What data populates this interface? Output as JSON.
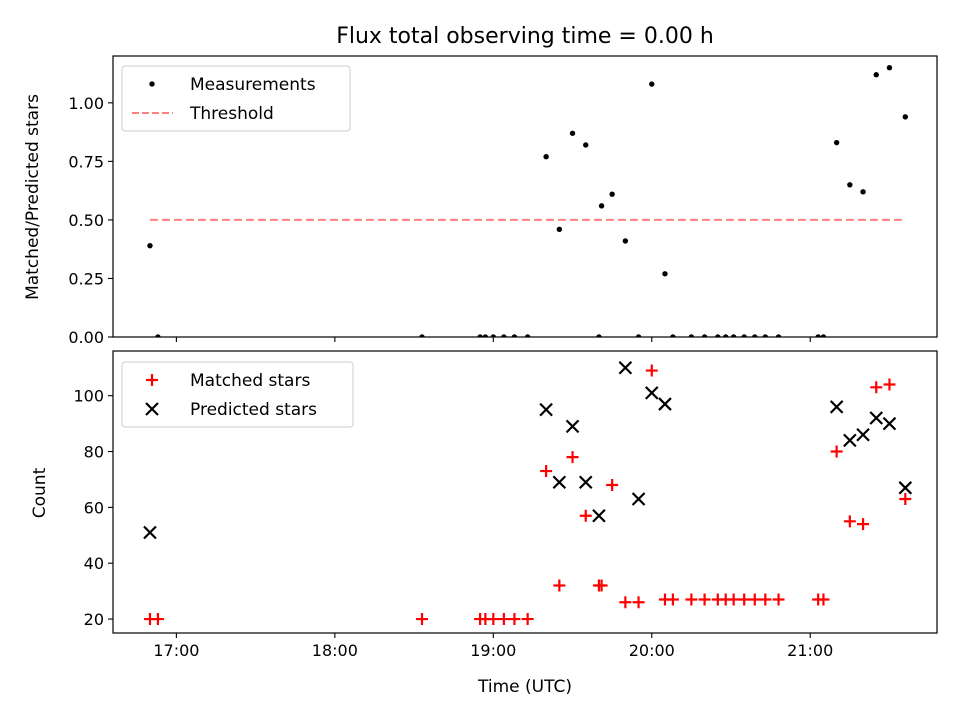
{
  "title": "Flux total observing time = 0.00 h",
  "colors": {
    "measurement": "#000000",
    "threshold": "#ff7f7f",
    "matched": "#ff0000",
    "predicted": "#000000"
  },
  "chart_data": [
    {
      "type": "scatter",
      "title": "Flux total observing time = 0.00 h",
      "ylabel": "Matched/Predicted stars",
      "xlim": [
        "16:36",
        "21:48"
      ],
      "ylim": [
        0,
        1.2
      ],
      "xticks": [
        "17:00",
        "18:00",
        "19:00",
        "20:00",
        "21:00"
      ],
      "yticks": [
        0.0,
        0.25,
        0.5,
        0.75,
        1.0
      ],
      "yticklabels": [
        "0.00",
        "0.25",
        "0.50",
        "0.75",
        "1.00"
      ],
      "legend": {
        "position": "top-left",
        "entries": [
          "Measurements",
          "Threshold"
        ]
      },
      "series": [
        {
          "name": "Measurements",
          "marker": "dot",
          "x": [
            "16:50",
            "16:53",
            "18:33",
            "18:55",
            "18:57",
            "19:00",
            "19:04",
            "19:08",
            "19:13",
            "19:20",
            "19:25",
            "19:30",
            "19:35",
            "19:40",
            "19:41",
            "19:45",
            "19:50",
            "19:55",
            "20:00",
            "20:05",
            "20:08",
            "20:15",
            "20:20",
            "20:25",
            "20:28",
            "20:31",
            "20:35",
            "20:39",
            "20:43",
            "20:48",
            "21:03",
            "21:05",
            "21:10",
            "21:15",
            "21:20",
            "21:25",
            "21:30",
            "21:36"
          ],
          "y": [
            0.39,
            0.0,
            0.0,
            0.0,
            0.0,
            0.0,
            0.0,
            0.0,
            0.0,
            0.77,
            0.46,
            0.87,
            0.82,
            0.0,
            0.56,
            0.61,
            0.41,
            0.0,
            1.08,
            0.27,
            0.0,
            0.0,
            0.0,
            0.0,
            0.0,
            0.0,
            0.0,
            0.0,
            0.0,
            0.0,
            0.0,
            0.0,
            0.83,
            0.65,
            0.62,
            1.12,
            1.15,
            0.94
          ]
        },
        {
          "name": "Threshold",
          "marker": "dashed-line",
          "x": [
            "16:50",
            "21:36"
          ],
          "y": [
            0.5,
            0.5
          ]
        }
      ]
    },
    {
      "type": "scatter",
      "xlabel": "Time (UTC)",
      "ylabel": "Count",
      "xlim": [
        "16:36",
        "21:48"
      ],
      "ylim": [
        15,
        116
      ],
      "xticks": [
        "17:00",
        "18:00",
        "19:00",
        "20:00",
        "21:00"
      ],
      "yticks": [
        20,
        40,
        60,
        80,
        100
      ],
      "legend": {
        "position": "top-left",
        "entries": [
          "Matched stars",
          "Predicted stars"
        ]
      },
      "series": [
        {
          "name": "Matched stars",
          "marker": "plus",
          "x": [
            "16:50",
            "16:53",
            "18:33",
            "18:55",
            "18:57",
            "19:00",
            "19:04",
            "19:08",
            "19:13",
            "19:20",
            "19:25",
            "19:30",
            "19:35",
            "19:40",
            "19:41",
            "19:45",
            "19:50",
            "19:55",
            "20:00",
            "20:05",
            "20:08",
            "20:15",
            "20:20",
            "20:25",
            "20:28",
            "20:31",
            "20:35",
            "20:39",
            "20:43",
            "20:48",
            "21:03",
            "21:05",
            "21:10",
            "21:15",
            "21:20",
            "21:25",
            "21:30",
            "21:36"
          ],
          "y": [
            20,
            20,
            20,
            20,
            20,
            20,
            20,
            20,
            20,
            73,
            32,
            78,
            57,
            32,
            32,
            68,
            26,
            26,
            109,
            27,
            27,
            27,
            27,
            27,
            27,
            27,
            27,
            27,
            27,
            27,
            27,
            27,
            80,
            55,
            54,
            103,
            104,
            63
          ]
        },
        {
          "name": "Predicted stars",
          "marker": "x",
          "x": [
            "16:50",
            "19:20",
            "19:25",
            "19:30",
            "19:35",
            "19:40",
            "19:50",
            "19:55",
            "20:00",
            "20:05",
            "21:10",
            "21:15",
            "21:20",
            "21:25",
            "21:30",
            "21:36"
          ],
          "y": [
            51,
            95,
            69,
            89,
            69,
            57,
            110,
            63,
            101,
            97,
            96,
            84,
            86,
            92,
            90,
            67
          ]
        }
      ]
    }
  ]
}
